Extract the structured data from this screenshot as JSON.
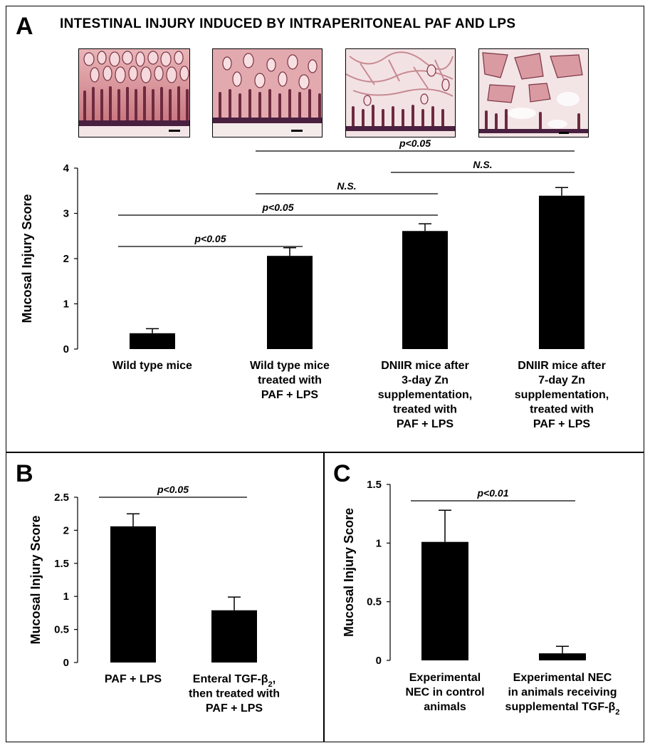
{
  "panel_a": {
    "letter": "A",
    "title": "INTESTINAL INJURY INDUCED BY INTRAPERITONEAL PAF AND LPS",
    "micrographs": [
      {
        "name": "micrograph-wild-type"
      },
      {
        "name": "micrograph-wild-type-paf-lps"
      },
      {
        "name": "micrograph-dniir-3day"
      },
      {
        "name": "micrograph-dniir-7day"
      }
    ]
  },
  "panel_b": {
    "letter": "B"
  },
  "panel_c": {
    "letter": "C"
  },
  "chart_data": [
    {
      "type": "bar",
      "panel": "A",
      "title": "",
      "xlabel": "",
      "ylabel": "Mucosal Injury Score",
      "ylim": [
        0,
        4
      ],
      "yticks": [
        0,
        1,
        2,
        3,
        4
      ],
      "tick_labels": [
        "0",
        "1",
        "2",
        "3",
        "4"
      ],
      "categories": [
        [
          "Wild type mice"
        ],
        [
          "Wild type mice",
          "treated with",
          "PAF + LPS"
        ],
        [
          "DNIIR mice after",
          "3-day Zn",
          "supplementation,",
          "treated with",
          "PAF + LPS"
        ],
        [
          "DNIIR mice after",
          "7-day Zn",
          "supplementation,",
          "treated with",
          "PAF + LPS"
        ]
      ],
      "values": [
        0.35,
        2.06,
        2.61,
        3.39
      ],
      "errors": [
        0.1,
        0.18,
        0.16,
        0.18
      ],
      "bar_color": "#000000",
      "comparisons": [
        {
          "from": 1,
          "to": 3,
          "label": "p<0.05"
        },
        {
          "from": 2,
          "to": 3,
          "label": "N.S."
        },
        {
          "from": 1,
          "to": 2,
          "label": "N.S."
        },
        {
          "from": 0,
          "to": 2,
          "label": "p<0.05"
        },
        {
          "from": 0,
          "to": 1,
          "label": "p<0.05"
        }
      ]
    },
    {
      "type": "bar",
      "panel": "B",
      "title": "",
      "xlabel": "",
      "ylabel": "Mucosal Injury Score",
      "ylim": [
        0,
        2.5
      ],
      "yticks": [
        0,
        0.5,
        1,
        1.5,
        2,
        2.5
      ],
      "tick_labels": [
        "0",
        "0.5",
        "1",
        "1.5",
        "2",
        "2.5"
      ],
      "categories": [
        [
          "PAF + LPS"
        ],
        [
          "Enteral TGF-β",
          "then treated with",
          "PAF + LPS"
        ]
      ],
      "category_subscripts": [
        [],
        [
          {
            "line": 0,
            "sub": "2",
            "suffix": ","
          }
        ]
      ],
      "values": [
        2.06,
        0.79
      ],
      "errors": [
        0.19,
        0.2
      ],
      "bar_color": "#000000",
      "comparisons": [
        {
          "from": 0,
          "to": 1,
          "label": "p<0.05"
        }
      ]
    },
    {
      "type": "bar",
      "panel": "C",
      "title": "",
      "xlabel": "",
      "ylabel": "Mucosal Injury Score",
      "ylim": [
        0,
        1.5
      ],
      "yticks": [
        0,
        0.5,
        1,
        1.5
      ],
      "tick_labels": [
        "0",
        "0.5",
        "1",
        "1.5"
      ],
      "categories": [
        [
          "Experimental",
          "NEC in control",
          "animals"
        ],
        [
          "Experimental NEC",
          "in animals receiving",
          "supplemental TGF-β"
        ]
      ],
      "category_subscripts": [
        [],
        [
          {
            "line": 2,
            "sub": "2",
            "suffix": ""
          }
        ]
      ],
      "values": [
        1.01,
        0.06
      ],
      "errors": [
        0.27,
        0.06
      ],
      "bar_color": "#000000",
      "comparisons": [
        {
          "from": 0,
          "to": 1,
          "label": "p<0.01"
        }
      ]
    }
  ]
}
